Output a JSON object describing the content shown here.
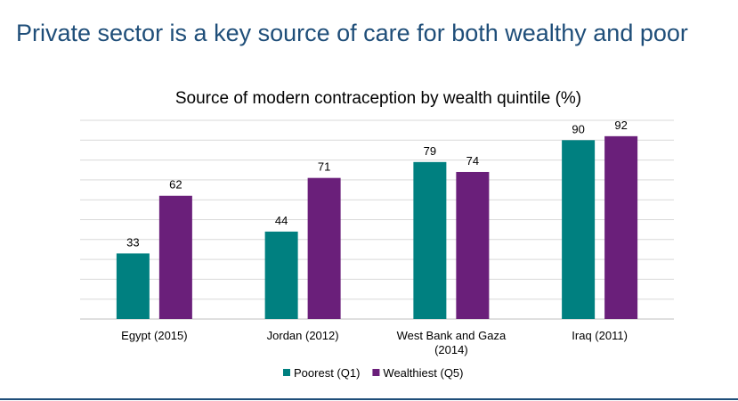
{
  "slide": {
    "title": "Private sector is a key source of care for both wealthy and poor"
  },
  "chart_data": {
    "type": "bar",
    "title": "Source of modern contraception by wealth quintile (%)",
    "categories": [
      [
        "Egypt (2015)"
      ],
      [
        "Jordan (2012)"
      ],
      [
        "West Bank and Gaza",
        "(2014)"
      ],
      [
        "Iraq (2011)"
      ]
    ],
    "series": [
      {
        "name": "Poorest (Q1)",
        "color": "#008080",
        "values": [
          33,
          44,
          79,
          90
        ]
      },
      {
        "name": "Wealthiest (Q5)",
        "color": "#6a1f7a",
        "values": [
          62,
          71,
          74,
          92
        ]
      }
    ],
    "ylim": [
      0,
      100
    ],
    "grid": true,
    "legend": "bottom"
  }
}
